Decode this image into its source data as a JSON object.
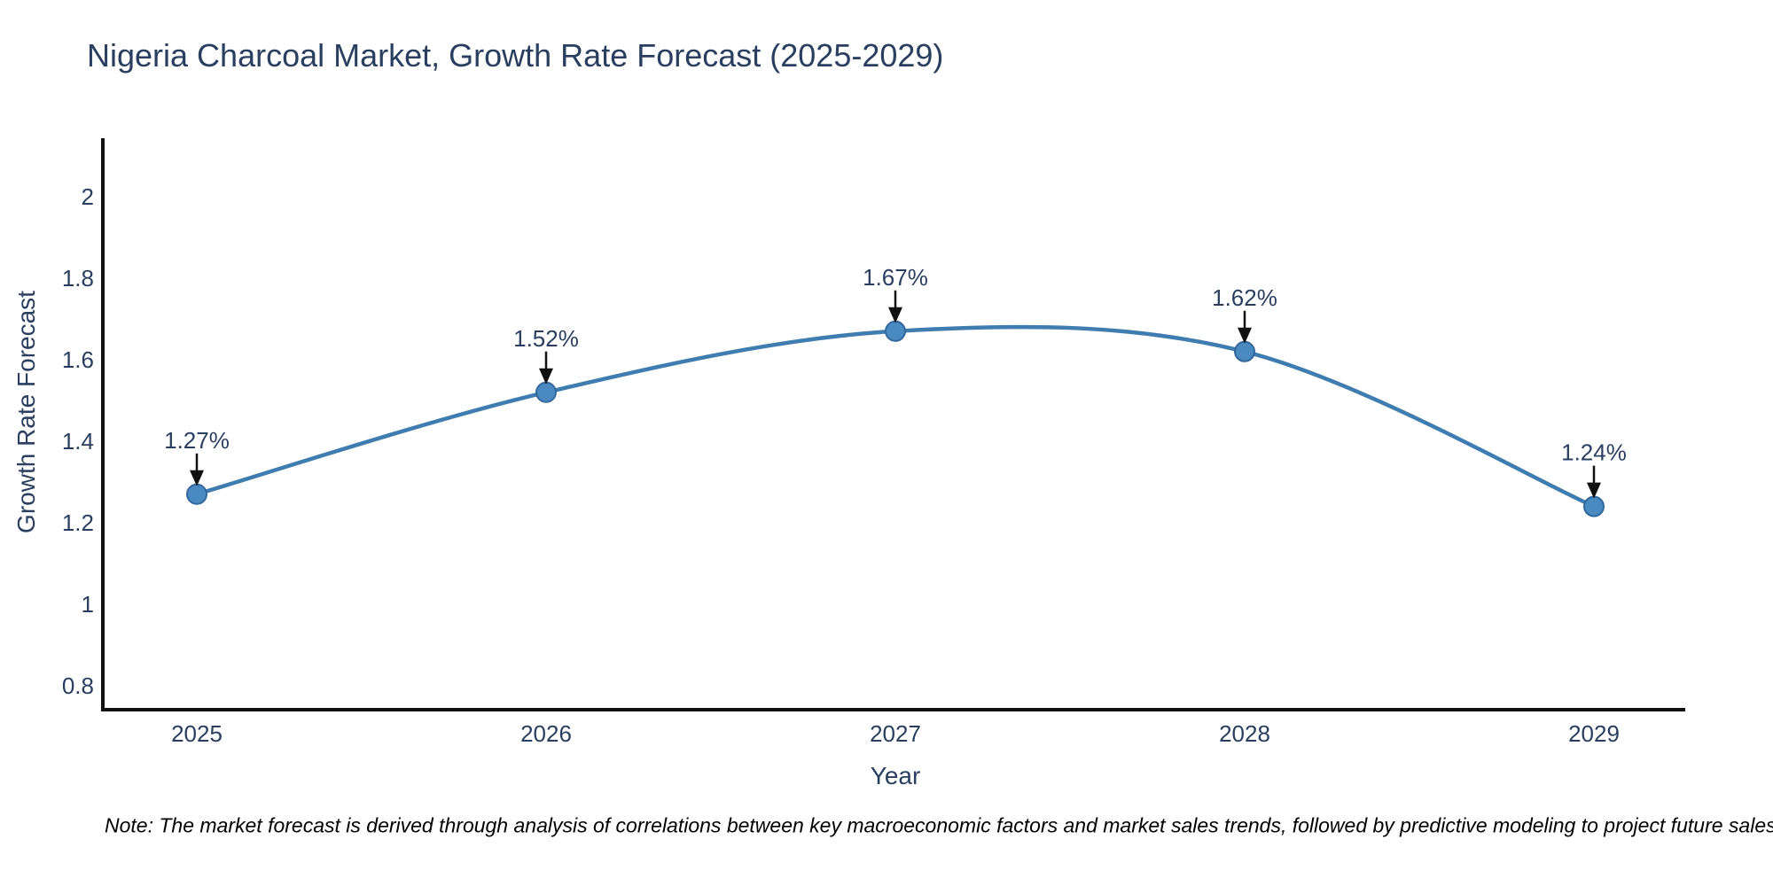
{
  "chart_data": {
    "type": "line",
    "title": "Nigeria Charcoal Market, Growth Rate Forecast (2025-2029)",
    "xlabel": "Year",
    "ylabel": "Growth Rate Forecast",
    "categories": [
      "2025",
      "2026",
      "2027",
      "2028",
      "2029"
    ],
    "values": [
      1.27,
      1.52,
      1.67,
      1.62,
      1.24
    ],
    "point_labels": [
      "1.27%",
      "1.52%",
      "1.67%",
      "1.62%",
      "1.24%"
    ],
    "ytick_labels": [
      "2",
      "1.8",
      "1.6",
      "1.4",
      "1.2",
      "1",
      "0.8"
    ],
    "ytick_values": [
      2,
      1.8,
      1.6,
      1.4,
      1.2,
      1,
      0.8
    ],
    "ylim": [
      0.74,
      2.14
    ],
    "grid": false,
    "legend": null,
    "note": "Note: The market forecast is derived through analysis of correlations between key macroeconomic factors and market sales trends, followed by predictive modeling to project future sales.",
    "colors": {
      "line": "#3f7cb0",
      "marker_fill": "#4a8ac0",
      "marker_border": "#31679c",
      "axis": "#111111",
      "text": "#2a3f5f",
      "note_text": "#000000"
    }
  }
}
